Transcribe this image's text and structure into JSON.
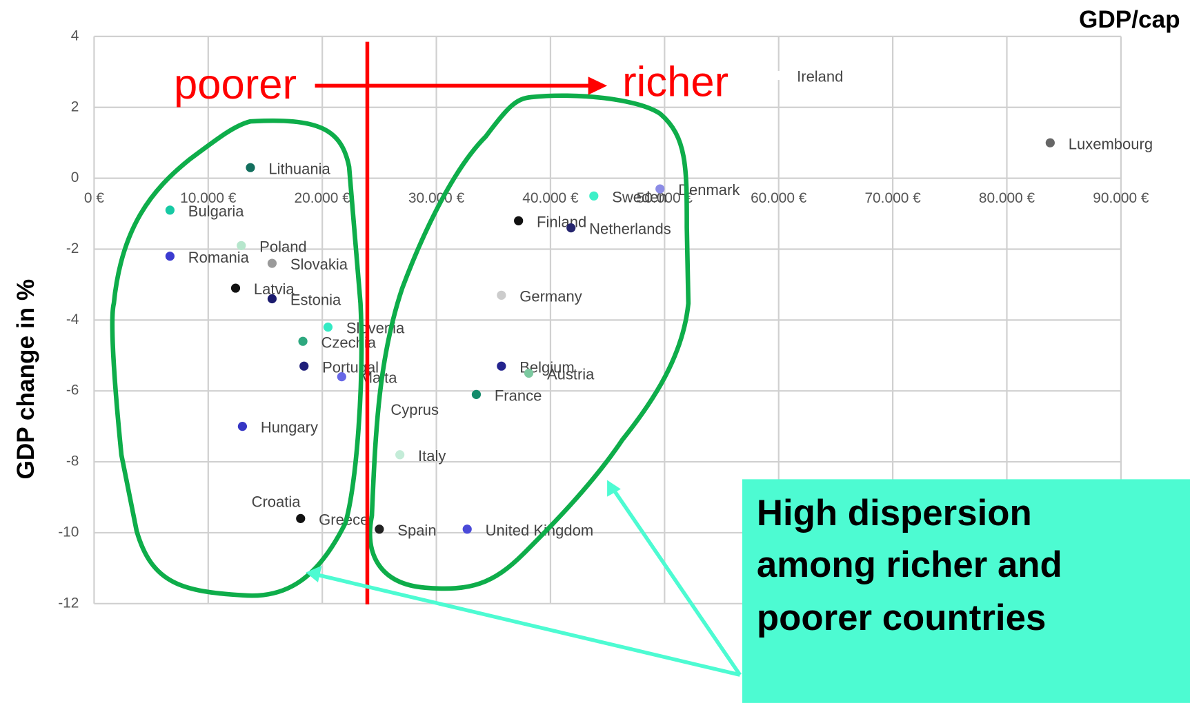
{
  "chart_data": {
    "type": "scatter",
    "xlabel": "GDP/cap",
    "ylabel": "GDP change in %",
    "annotations": [
      "poorer",
      "richer",
      "High dispersion",
      "among richer and",
      "poorer countries"
    ],
    "point_labels": [
      "Lithuania",
      "Bulgaria",
      "Romania",
      "Poland",
      "Slovakia",
      "Latvia",
      "Estonia",
      "Slovenia",
      "Czechia",
      "Portugal",
      "Malta",
      "Hungary",
      "Croatia",
      "Greece",
      "Ireland",
      "Cyprus",
      "Spain",
      "United Kingdom",
      "Italy",
      "France",
      "Belgium",
      "Austria",
      "Germany",
      "Finland",
      "Netherlands",
      "Sweden",
      "Denmark",
      "Luxembourg"
    ],
    "x": [
      13700,
      6650,
      6650,
      12900,
      15600,
      12400,
      15600,
      20500,
      18300,
      18400,
      21700,
      13000,
      12200,
      18100,
      60000,
      24400,
      25000,
      32700,
      26800,
      33500,
      35700,
      38100,
      35700,
      37200,
      41800,
      43800,
      49600,
      83800
    ],
    "values": [
      0.3,
      -0.9,
      -2.2,
      -1.9,
      -2.4,
      -3.1,
      -3.4,
      -4.2,
      -4.6,
      -5.3,
      -5.6,
      -7.0,
      -9.1,
      -9.6,
      2.9,
      -6.5,
      -9.9,
      -9.9,
      -7.8,
      -6.1,
      -5.3,
      -5.5,
      -3.3,
      -1.2,
      -1.4,
      -0.5,
      -0.3,
      1.0
    ],
    "colors": [
      "#136f5e",
      "#17c9a4",
      "#3b3bd0",
      "#b6e6cc",
      "#9a9a9a",
      "#111111",
      "#1b1b6e",
      "#33eac3",
      "#2ea87f",
      "#1f1f7a",
      "#6868e6",
      "#3636c4",
      "#ffffff",
      "#111111",
      "#ffffff",
      "#ffffff",
      "#222222",
      "#4a4ad8",
      "#c4ecd8",
      "#138a6a",
      "#24248e",
      "#7cc9a0",
      "#cccccc",
      "#111111",
      "#25256e",
      "#3df0c8",
      "#8c8ce6",
      "#666666"
    ],
    "xlim": [
      0,
      90000
    ],
    "xticks": [
      {
        "value": 0,
        "label": "0 €"
      },
      {
        "value": 10000,
        "label": "10.000 €"
      },
      {
        "value": 20000,
        "label": "20.000 €"
      },
      {
        "value": 30000,
        "label": "30.000 €"
      },
      {
        "value": 40000,
        "label": "40.000 €"
      },
      {
        "value": 50000,
        "label": "50.000 €"
      },
      {
        "value": 60000,
        "label": "60.000 €"
      },
      {
        "value": 70000,
        "label": "70.000 €"
      },
      {
        "value": 80000,
        "label": "80.000 €"
      },
      {
        "value": 90000,
        "label": "90.000 €"
      }
    ],
    "ylim": [
      -12,
      4
    ],
    "yticks": [
      -12,
      -10,
      -8,
      -6,
      -4,
      -2,
      0,
      2,
      4
    ],
    "grid": true
  }
}
